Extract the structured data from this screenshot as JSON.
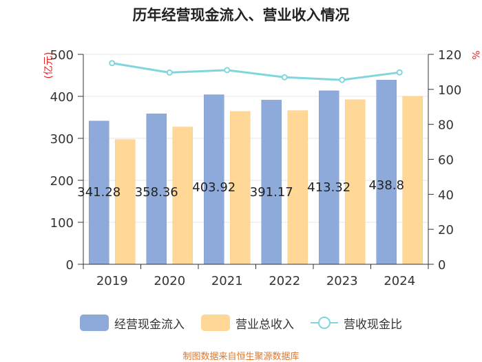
{
  "colors": {
    "operating_cash": "#8eaadb",
    "revenue": "#ffd898",
    "ratio": "#7fd6dc",
    "axis_unit": "#e02020",
    "source": "#e0762a"
  },
  "chart_data": {
    "type": "bar+line",
    "title": "历年经营现金流入、营业收入情况",
    "source": "制图数据来自恒生聚源数据库",
    "categories": [
      "2019",
      "2020",
      "2021",
      "2022",
      "2023",
      "2024"
    ],
    "y_left": {
      "unit_label": "亿元",
      "ylim": [
        0,
        500
      ],
      "ticks": [
        "0",
        "100",
        "200",
        "300",
        "400",
        "500"
      ]
    },
    "y_right": {
      "unit_label": "%",
      "ylim": [
        0,
        120
      ],
      "ticks": [
        "0",
        "20",
        "40",
        "60",
        "80",
        "100",
        "120"
      ]
    },
    "grid": true,
    "legend_position": "bottom",
    "series": [
      {
        "name": "经营现金流入",
        "kind": "bar",
        "axis": "left",
        "values": [
          341.28,
          358.36,
          403.92,
          391.17,
          413.32,
          438.8
        ],
        "labels": [
          "341.28",
          "358.36",
          "403.92",
          "391.17",
          "413.32",
          "438.8"
        ]
      },
      {
        "name": "营业总收入",
        "kind": "bar",
        "axis": "left",
        "values": [
          297,
          327,
          364,
          366,
          392,
          400
        ]
      },
      {
        "name": "营收现金比",
        "kind": "line",
        "axis": "right",
        "values": [
          115,
          109.6,
          111,
          106.9,
          105.4,
          109.7
        ]
      }
    ]
  }
}
